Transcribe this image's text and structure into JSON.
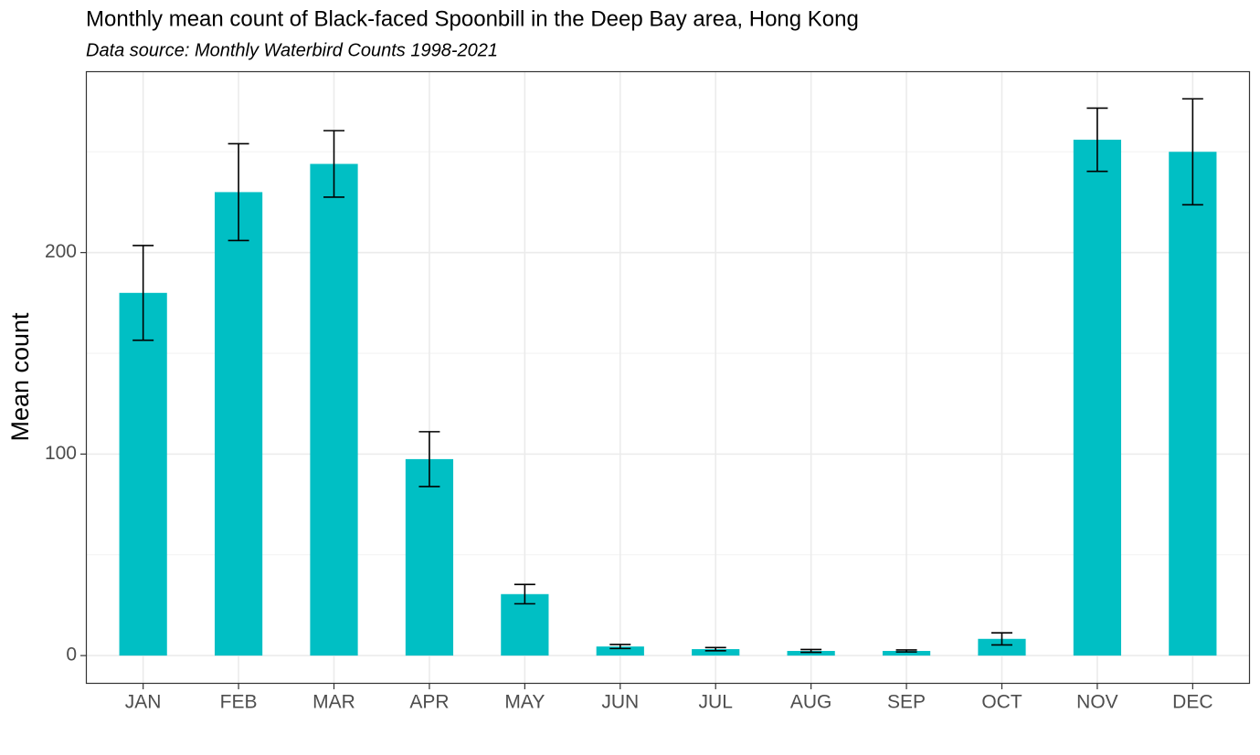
{
  "chart_data": {
    "type": "bar",
    "title": "Monthly mean count of Black-faced Spoonbill in the Deep Bay area, Hong Kong",
    "subtitle": "Data source: Monthly Waterbird Counts 1998-2021",
    "y_label": "Mean count",
    "categories": [
      "JAN",
      "FEB",
      "MAR",
      "APR",
      "MAY",
      "JUN",
      "JUL",
      "AUG",
      "SEP",
      "OCT",
      "NOV",
      "DEC"
    ],
    "values": [
      180,
      230,
      244,
      97.5,
      30.5,
      4.5,
      3.2,
      2.3,
      2.3,
      8.3,
      256,
      250
    ],
    "errors": [
      23.5,
      24,
      16.5,
      13.6,
      4.8,
      1,
      0.8,
      0.7,
      0.5,
      3,
      15.7,
      26.3
    ],
    "color": "#00bfc4",
    "error_color": "#000000",
    "ylim": [
      -14,
      290
    ],
    "yticks": [
      0,
      100,
      200
    ],
    "yminor": [
      50,
      150,
      250
    ],
    "grid": true
  }
}
